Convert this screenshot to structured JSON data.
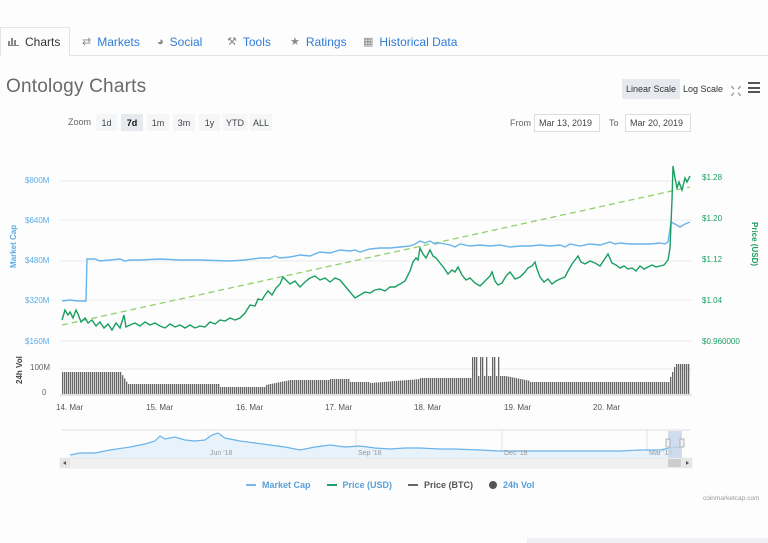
{
  "tabs": [
    {
      "label": "Charts",
      "icon": "bar-chart-icon",
      "glyph": "▐▌",
      "active": true
    },
    {
      "label": "Markets",
      "icon": "exchange-icon",
      "glyph": "⇄",
      "active": false
    },
    {
      "label": "Social",
      "icon": "globe-icon",
      "glyph": "◕",
      "active": false
    },
    {
      "label": "Tools",
      "icon": "wrench-icon",
      "glyph": "⚒",
      "active": false
    },
    {
      "label": "Ratings",
      "icon": "star-icon",
      "glyph": "★",
      "active": false
    },
    {
      "label": "Historical Data",
      "icon": "calendar-icon",
      "glyph": "▦",
      "active": false
    }
  ],
  "page": {
    "title": "Ontology Charts"
  },
  "scale": {
    "linear": "Linear Scale",
    "log": "Log Scale",
    "active": "linear"
  },
  "zoom": {
    "label": "Zoom",
    "options": [
      "1d",
      "7d",
      "1m",
      "3m",
      "1y",
      "YTD",
      "ALL"
    ],
    "active": "7d"
  },
  "range": {
    "from_label": "From",
    "from_value": "Mar 13, 2019",
    "to_label": "To",
    "to_value": "Mar 20, 2019"
  },
  "legend": [
    {
      "label": "Market Cap",
      "color": "#7cb5ec",
      "kind": "line"
    },
    {
      "label": "Price (USD)",
      "color": "#1aa36b",
      "kind": "line"
    },
    {
      "label": "Price (BTC)",
      "color": "#666666",
      "kind": "line"
    },
    {
      "label": "24h Vol",
      "color": "#555555",
      "kind": "dot"
    }
  ],
  "credits": "coinmarketcap.com",
  "colors": {
    "market_cap": "#6ab4ea",
    "price_usd": "#1a9e62",
    "trend": "#8fd16b",
    "volume": "#555555",
    "axis_left": "#5aaee8",
    "axis_right": "#1a9e62"
  },
  "chart_data": {
    "type": "line",
    "title": "Ontology Charts",
    "x_ticks": [
      "14. Mar",
      "15. Mar",
      "16. Mar",
      "17. Mar",
      "18. Mar",
      "19. Mar",
      "20. Mar"
    ],
    "left_axis": {
      "label": "Market Cap",
      "ticks": [
        "$160M",
        "$320M",
        "$480M",
        "$640M",
        "$800M"
      ],
      "range": [
        160,
        800
      ],
      "unit": "M USD"
    },
    "right_axis": {
      "label": "Price (USD)",
      "ticks": [
        "$0.960000",
        "$1.04",
        "$1.12",
        "$1.20",
        "$1.28"
      ],
      "range": [
        0.96,
        1.28
      ]
    },
    "volume_axis": {
      "label": "24h Vol",
      "ticks": [
        "0",
        "100M"
      ]
    },
    "navigator_ticks": [
      "Jun '18",
      "Sep '18",
      "Dec '18",
      "Mar '19"
    ],
    "series": [
      {
        "name": "Market Cap",
        "axis": "left",
        "unit": "M USD",
        "x": [
          "13 Mar 18:00",
          "14 Mar 06:00",
          "14 Mar 07:00",
          "15 Mar 00:00",
          "16 Mar 00:00",
          "17 Mar 00:00",
          "17 Mar 12:00",
          "18 Mar 00:00",
          "18 Mar 12:00",
          "19 Mar 00:00",
          "20 Mar 00:00",
          "20 Mar 18:00",
          "20 Mar 19:00",
          "21 Mar 00:00"
        ],
        "values": [
          335,
          335,
          485,
          485,
          488,
          495,
          505,
          520,
          505,
          500,
          505,
          505,
          640,
          645
        ]
      },
      {
        "name": "Price (USD)",
        "axis": "right",
        "x": [
          "13 Mar 18:00",
          "14 Mar 06:00",
          "15 Mar 00:00",
          "16 Mar 00:00",
          "16 Mar 12:00",
          "17 Mar 00:00",
          "17 Mar 12:00",
          "18 Mar 00:00",
          "18 Mar 06:00",
          "18 Mar 18:00",
          "19 Mar 00:00",
          "19 Mar 12:00",
          "20 Mar 00:00",
          "20 Mar 12:00",
          "20 Mar 18:00",
          "20 Mar 19:00",
          "21 Mar 00:00"
        ],
        "values": [
          1.01,
          1.01,
          1.0,
          1.015,
          1.06,
          1.045,
          1.055,
          1.08,
          1.125,
          1.09,
          1.08,
          1.085,
          1.115,
          1.105,
          1.11,
          1.3,
          1.285
        ]
      },
      {
        "name": "Trend",
        "style": "dashed",
        "x": [
          "14 Mar 00:00",
          "21 Mar 00:00"
        ],
        "values": [
          1.005,
          1.265
        ],
        "axis": "right"
      },
      {
        "name": "24h Vol",
        "type": "column",
        "unit": "M USD",
        "x": [
          "14 Mar",
          "14 Mar 12:00",
          "15 Mar",
          "16 Mar",
          "16 Mar 12:00",
          "17 Mar",
          "18 Mar",
          "18 Mar 12:00",
          "18 Mar 18:00",
          "19 Mar",
          "19 Mar 12:00",
          "20 Mar",
          "20 Mar 18:00",
          "21 Mar"
        ],
        "values": [
          80,
          78,
          40,
          35,
          42,
          45,
          50,
          55,
          120,
          65,
          40,
          40,
          40,
          110
        ]
      }
    ],
    "grid": true,
    "legend_position": "bottom"
  }
}
